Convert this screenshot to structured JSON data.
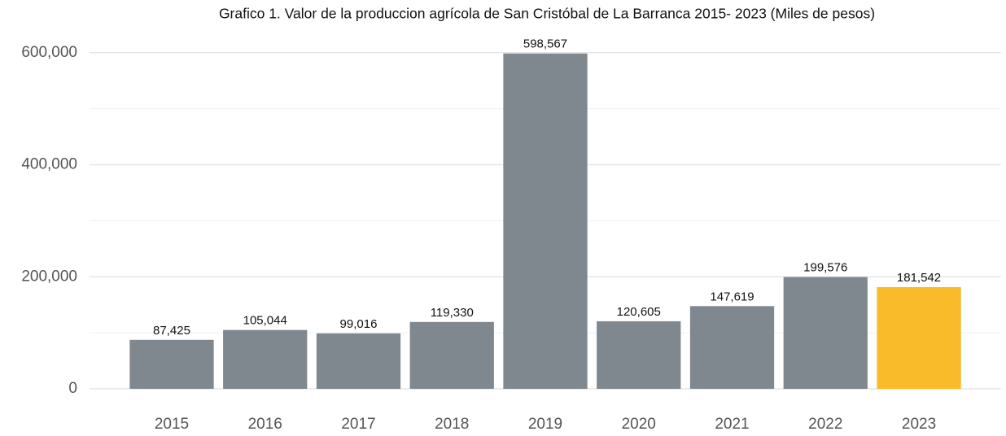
{
  "chart_data": {
    "type": "bar",
    "title": "Grafico 1. Valor de la produccion agrícola de San Cristóbal de La Barranca 2015- 2023 (Miles de pesos)",
    "categories": [
      "2015",
      "2016",
      "2017",
      "2018",
      "2019",
      "2020",
      "2021",
      "2022",
      "2023"
    ],
    "values": [
      87425,
      105044,
      99016,
      119330,
      598567,
      120605,
      147619,
      199576,
      181542
    ],
    "value_labels": [
      "87,425",
      "105,044",
      "99,016",
      "119,330",
      "598,567",
      "120,605",
      "147,619",
      "199,576",
      "181,542"
    ],
    "colors": [
      "#7f888e",
      "#7f888e",
      "#7f888e",
      "#7f888e",
      "#7f888e",
      "#7f888e",
      "#7f888e",
      "#7f888e",
      "#f9bb2a"
    ],
    "ylim": [
      0,
      636000
    ],
    "yticks": [
      0,
      {
        "value": 200000,
        "label": "200,000"
      },
      {
        "value": 400000,
        "label": "400,000"
      },
      {
        "value": 600000,
        "label": "600,000"
      }
    ],
    "minor_yticks": [
      100000,
      300000,
      500000
    ],
    "grid": true
  }
}
